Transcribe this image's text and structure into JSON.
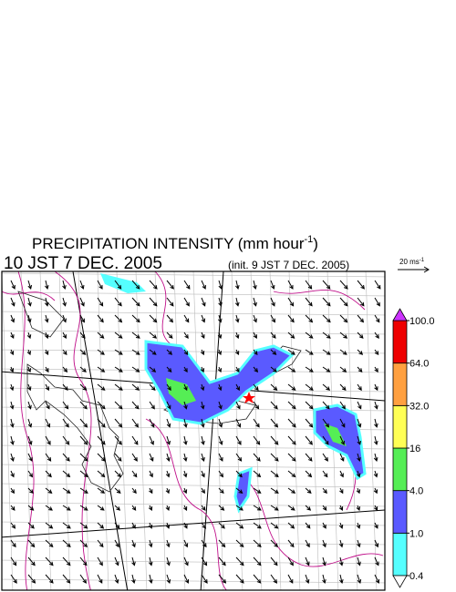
{
  "title": {
    "text": "PRECIPITATION INTENSITY (mm hour",
    "sup": "-1",
    "close": ")"
  },
  "valid_time": "10 JST 7 DEC. 2005",
  "init_time": "(init. 9 JST 7 DEC. 2005)",
  "vector_scale": {
    "text": "20 ms",
    "sup": "-1"
  },
  "colorbar": {
    "levels": [
      {
        "value": 0.4,
        "label": "0.4"
      },
      {
        "value": 1,
        "label": "1.0"
      },
      {
        "value": 4,
        "label": "4.0"
      },
      16,
      {
        "value": 32,
        "label": "32.0"
      },
      {
        "value": 64,
        "label": "64.0"
      },
      {
        "value": 100,
        "label": "100.0"
      }
    ],
    "colors": [
      "#55ffff",
      "#5a5aff",
      "#55ee55",
      "#ffff55",
      "#ffa040",
      "#ee0000"
    ],
    "over_color": "#cc33ff",
    "under_color": "#ffffff"
  }
}
